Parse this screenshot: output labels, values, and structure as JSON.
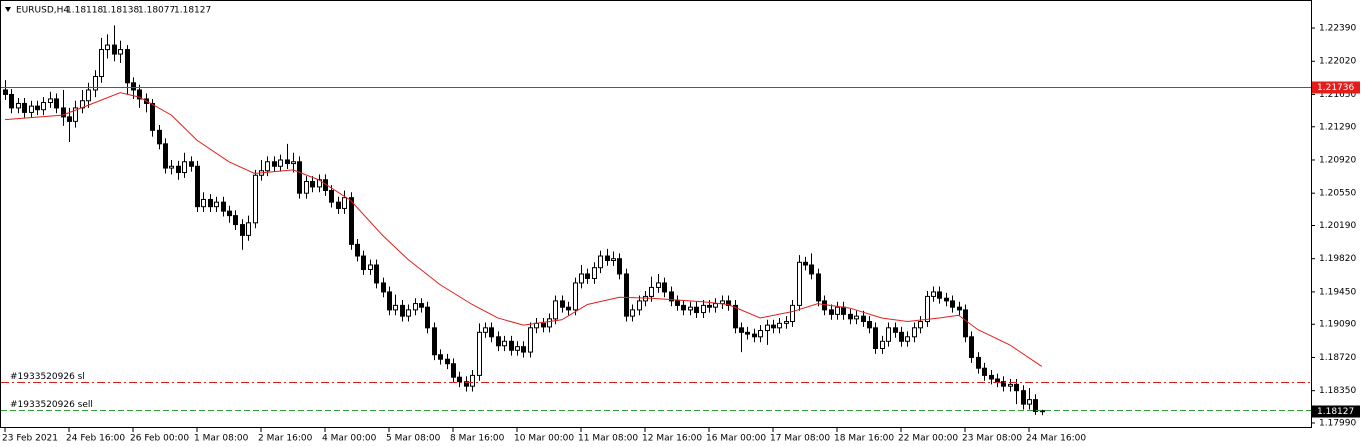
{
  "chart_data": {
    "type": "candlestick",
    "symbol": "EURUSD,H4",
    "categories": [
      "23 Feb 2021",
      null,
      null,
      null,
      null,
      null,
      null,
      null,
      null,
      null,
      "24 Feb 16:00",
      null,
      null,
      null,
      null,
      null,
      null,
      null,
      null,
      null,
      "26 Feb 00:00",
      null,
      null,
      null,
      null,
      null,
      null,
      null,
      null,
      null,
      "1 Mar 08:00",
      null,
      null,
      null,
      null,
      null,
      null,
      null,
      null,
      null,
      "2 Mar 16:00",
      null,
      null,
      null,
      null,
      null,
      null,
      null,
      null,
      null,
      "4 Mar 00:00",
      null,
      null,
      null,
      null,
      null,
      null,
      null,
      null,
      null,
      "5 Mar 08:00",
      null,
      null,
      null,
      null,
      null,
      null,
      null,
      null,
      null,
      "8 Mar 16:00",
      null,
      null,
      null,
      null,
      null,
      null,
      null,
      null,
      null,
      "10 Mar 00:00",
      null,
      null,
      null,
      null,
      null,
      null,
      null,
      null,
      null,
      "11 Mar 08:00",
      null,
      null,
      null,
      null,
      null,
      null,
      null,
      null,
      null,
      "12 Mar 16:00",
      null,
      null,
      null,
      null,
      null,
      null,
      null,
      null,
      null,
      "16 Mar 00:00",
      null,
      null,
      null,
      null,
      null,
      null,
      null,
      null,
      null,
      "17 Mar 08:00",
      null,
      null,
      null,
      null,
      null,
      null,
      null,
      null,
      null,
      "18 Mar 16:00",
      null,
      null,
      null,
      null,
      null,
      null,
      null,
      null,
      null,
      "22 Mar 00:00",
      null,
      null,
      null,
      null,
      null,
      null,
      null,
      null,
      null,
      "23 Mar 08:00",
      null,
      null,
      null,
      null,
      null,
      null,
      null,
      null,
      null,
      "24 Mar 16:00",
      null,
      null
    ],
    "ohlc": [
      [
        1.217,
        1.2181,
        1.2159,
        1.2165
      ],
      [
        1.2165,
        1.2171,
        1.2144,
        1.215
      ],
      [
        1.215,
        1.2161,
        1.2144,
        1.2155
      ],
      [
        1.2155,
        1.2161,
        1.2139,
        1.2145
      ],
      [
        1.2145,
        1.2158,
        1.2139,
        1.2152
      ],
      [
        1.2152,
        1.2158,
        1.2142,
        1.2148
      ],
      [
        1.2148,
        1.2162,
        1.2142,
        1.2156
      ],
      [
        1.2156,
        1.2168,
        1.215,
        1.216
      ],
      [
        1.216,
        1.2166,
        1.2144,
        1.215
      ],
      [
        1.215,
        1.217,
        1.213,
        1.214
      ],
      [
        1.214,
        1.215,
        1.2112,
        1.2135
      ],
      [
        1.2135,
        1.2158,
        1.2128,
        1.215
      ],
      [
        1.215,
        1.217,
        1.2144,
        1.2158
      ],
      [
        1.2158,
        1.2178,
        1.215,
        1.217
      ],
      [
        1.217,
        1.2192,
        1.2162,
        1.2185
      ],
      [
        1.2185,
        1.2228,
        1.2178,
        1.2215
      ],
      [
        1.2215,
        1.2232,
        1.2205,
        1.222
      ],
      [
        1.222,
        1.2242,
        1.2202,
        1.221
      ],
      [
        1.221,
        1.2225,
        1.22,
        1.2215
      ],
      [
        1.2215,
        1.222,
        1.2165,
        1.2178
      ],
      [
        1.2178,
        1.2184,
        1.216,
        1.217
      ],
      [
        1.217,
        1.2176,
        1.215,
        1.216
      ],
      [
        1.216,
        1.2166,
        1.2145,
        1.2155
      ],
      [
        1.2155,
        1.216,
        1.2118,
        1.2125
      ],
      [
        1.2125,
        1.2131,
        1.2104,
        1.211
      ],
      [
        1.211,
        1.2116,
        1.2077,
        1.2083
      ],
      [
        1.2083,
        1.2092,
        1.2076,
        1.2085
      ],
      [
        1.2085,
        1.2091,
        1.207,
        1.2078
      ],
      [
        1.2078,
        1.21,
        1.2072,
        1.209
      ],
      [
        1.209,
        1.2096,
        1.2079,
        1.2085
      ],
      [
        1.2085,
        1.2091,
        1.2034,
        1.204
      ],
      [
        1.204,
        1.2056,
        1.2034,
        1.2048
      ],
      [
        1.2048,
        1.2054,
        1.2034,
        1.204
      ],
      [
        1.204,
        1.2051,
        1.2034,
        1.2045
      ],
      [
        1.2045,
        1.2051,
        1.2029,
        1.2035
      ],
      [
        1.2035,
        1.2041,
        1.2022,
        1.203
      ],
      [
        1.203,
        1.2036,
        1.2014,
        1.202
      ],
      [
        1.202,
        1.2026,
        1.1992,
        1.2008
      ],
      [
        1.2008,
        1.203,
        1.2002,
        1.2022
      ],
      [
        1.2022,
        1.2081,
        1.2016,
        1.2075
      ],
      [
        1.2075,
        1.2092,
        1.2069,
        1.208
      ],
      [
        1.208,
        1.2096,
        1.2074,
        1.209
      ],
      [
        1.209,
        1.2096,
        1.2079,
        1.2085
      ],
      [
        1.2085,
        1.2098,
        1.2079,
        1.2092
      ],
      [
        1.2092,
        1.211,
        1.2082,
        1.2088
      ],
      [
        1.2088,
        1.21,
        1.2078,
        1.209
      ],
      [
        1.209,
        1.2096,
        1.2049,
        1.2055
      ],
      [
        1.2055,
        1.2074,
        1.2049,
        1.2068
      ],
      [
        1.2068,
        1.2074,
        1.2056,
        1.2062
      ],
      [
        1.2062,
        1.2076,
        1.2056,
        1.207
      ],
      [
        1.207,
        1.2076,
        1.2052,
        1.2058
      ],
      [
        1.2058,
        1.2064,
        1.2039,
        1.2045
      ],
      [
        1.2045,
        1.2051,
        1.2032,
        1.2038
      ],
      [
        1.2038,
        1.2058,
        1.2032,
        1.205
      ],
      [
        1.205,
        1.2056,
        1.1992,
        1.1998
      ],
      [
        1.1998,
        1.2004,
        1.1979,
        1.1985
      ],
      [
        1.1985,
        1.1991,
        1.1964,
        1.197
      ],
      [
        1.197,
        1.1981,
        1.1964,
        1.1975
      ],
      [
        1.1975,
        1.1981,
        1.1949,
        1.1955
      ],
      [
        1.1955,
        1.1961,
        1.1939,
        1.1945
      ],
      [
        1.1945,
        1.1951,
        1.1919,
        1.1925
      ],
      [
        1.1925,
        1.1942,
        1.1919,
        1.193
      ],
      [
        1.193,
        1.1936,
        1.1912,
        1.1918
      ],
      [
        1.1918,
        1.1931,
        1.1912,
        1.1925
      ],
      [
        1.1925,
        1.1938,
        1.1919,
        1.1932
      ],
      [
        1.1932,
        1.1938,
        1.1922,
        1.1928
      ],
      [
        1.1928,
        1.1934,
        1.1899,
        1.1905
      ],
      [
        1.1905,
        1.1911,
        1.1869,
        1.1875
      ],
      [
        1.1875,
        1.1881,
        1.1864,
        1.187
      ],
      [
        1.187,
        1.1876,
        1.1859,
        1.1865
      ],
      [
        1.1865,
        1.1871,
        1.1844,
        1.185
      ],
      [
        1.185,
        1.1856,
        1.1839,
        1.1845
      ],
      [
        1.1845,
        1.1851,
        1.1834,
        1.184
      ],
      [
        1.184,
        1.1858,
        1.1834,
        1.1852
      ],
      [
        1.1852,
        1.191,
        1.1846,
        1.19
      ],
      [
        1.19,
        1.1911,
        1.1894,
        1.1905
      ],
      [
        1.1905,
        1.1911,
        1.1889,
        1.1895
      ],
      [
        1.1895,
        1.1901,
        1.1879,
        1.1885
      ],
      [
        1.1885,
        1.1896,
        1.1879,
        1.189
      ],
      [
        1.189,
        1.1896,
        1.1874,
        1.188
      ],
      [
        1.188,
        1.189,
        1.1874,
        1.1884
      ],
      [
        1.1884,
        1.189,
        1.1872,
        1.1878
      ],
      [
        1.1878,
        1.1911,
        1.1872,
        1.1905
      ],
      [
        1.1905,
        1.1916,
        1.1899,
        1.191
      ],
      [
        1.191,
        1.1916,
        1.19,
        1.1906
      ],
      [
        1.1906,
        1.1921,
        1.19,
        1.1915
      ],
      [
        1.1915,
        1.1941,
        1.1909,
        1.1935
      ],
      [
        1.1935,
        1.1941,
        1.1922,
        1.1928
      ],
      [
        1.1928,
        1.1934,
        1.1919,
        1.1925
      ],
      [
        1.1925,
        1.1961,
        1.1919,
        1.1955
      ],
      [
        1.1955,
        1.1975,
        1.1949,
        1.1965
      ],
      [
        1.1965,
        1.1971,
        1.1954,
        1.196
      ],
      [
        1.196,
        1.1978,
        1.1954,
        1.1972
      ],
      [
        1.1972,
        1.1991,
        1.1966,
        1.1985
      ],
      [
        1.1985,
        1.1993,
        1.1974,
        1.198
      ],
      [
        1.198,
        1.199,
        1.1974,
        1.1982
      ],
      [
        1.1982,
        1.1988,
        1.1959,
        1.1965
      ],
      [
        1.1965,
        1.1971,
        1.1912,
        1.1918
      ],
      [
        1.1918,
        1.1931,
        1.1912,
        1.1925
      ],
      [
        1.1925,
        1.1941,
        1.1919,
        1.1935
      ],
      [
        1.1935,
        1.1946,
        1.1929,
        1.194
      ],
      [
        1.194,
        1.1962,
        1.1934,
        1.195
      ],
      [
        1.195,
        1.1965,
        1.1944,
        1.1955
      ],
      [
        1.1955,
        1.1961,
        1.1939,
        1.1945
      ],
      [
        1.1945,
        1.1951,
        1.1929,
        1.1935
      ],
      [
        1.1935,
        1.1941,
        1.1924,
        1.193
      ],
      [
        1.193,
        1.1936,
        1.1919,
        1.1925
      ],
      [
        1.1925,
        1.1934,
        1.1919,
        1.1928
      ],
      [
        1.1928,
        1.1934,
        1.1916,
        1.1922
      ],
      [
        1.1922,
        1.1936,
        1.1916,
        1.193
      ],
      [
        1.193,
        1.1936,
        1.1922,
        1.1928
      ],
      [
        1.1928,
        1.1938,
        1.1922,
        1.1932
      ],
      [
        1.1932,
        1.1941,
        1.1926,
        1.1935
      ],
      [
        1.1935,
        1.1941,
        1.1924,
        1.193
      ],
      [
        1.193,
        1.1936,
        1.1899,
        1.1905
      ],
      [
        1.1905,
        1.1911,
        1.1878,
        1.19
      ],
      [
        1.19,
        1.1906,
        1.1892,
        1.1898
      ],
      [
        1.1898,
        1.1904,
        1.1889,
        1.1895
      ],
      [
        1.1895,
        1.1908,
        1.1889,
        1.1902
      ],
      [
        1.1902,
        1.1914,
        1.1886,
        1.1908
      ],
      [
        1.1908,
        1.1914,
        1.1899,
        1.1905
      ],
      [
        1.1905,
        1.1916,
        1.1899,
        1.191
      ],
      [
        1.191,
        1.1918,
        1.1904,
        1.1912
      ],
      [
        1.1912,
        1.1936,
        1.1906,
        1.193
      ],
      [
        1.193,
        1.1986,
        1.1924,
        1.1978
      ],
      [
        1.1978,
        1.1984,
        1.1969,
        1.1975
      ],
      [
        1.1975,
        1.1988,
        1.1959,
        1.1965
      ],
      [
        1.1965,
        1.1971,
        1.1929,
        1.1935
      ],
      [
        1.1935,
        1.1941,
        1.1919,
        1.1925
      ],
      [
        1.1925,
        1.1931,
        1.1914,
        1.192
      ],
      [
        1.192,
        1.1934,
        1.1914,
        1.1928
      ],
      [
        1.1928,
        1.1934,
        1.1914,
        1.192
      ],
      [
        1.192,
        1.1926,
        1.1909,
        1.1915
      ],
      [
        1.1915,
        1.1924,
        1.1909,
        1.1918
      ],
      [
        1.1918,
        1.1924,
        1.1906,
        1.1912
      ],
      [
        1.1912,
        1.1918,
        1.1899,
        1.1905
      ],
      [
        1.1905,
        1.1911,
        1.1876,
        1.1882
      ],
      [
        1.1882,
        1.1896,
        1.1876,
        1.189
      ],
      [
        1.189,
        1.1911,
        1.1884,
        1.1905
      ],
      [
        1.1905,
        1.1911,
        1.1894,
        1.19
      ],
      [
        1.19,
        1.1906,
        1.1884,
        1.189
      ],
      [
        1.189,
        1.1901,
        1.1884,
        1.1895
      ],
      [
        1.1895,
        1.1911,
        1.1889,
        1.1905
      ],
      [
        1.1905,
        1.1918,
        1.1899,
        1.1912
      ],
      [
        1.1912,
        1.1946,
        1.1906,
        1.194
      ],
      [
        1.194,
        1.1951,
        1.1934,
        1.1945
      ],
      [
        1.1945,
        1.1951,
        1.1932,
        1.1938
      ],
      [
        1.1938,
        1.1944,
        1.1929,
        1.1935
      ],
      [
        1.1935,
        1.1941,
        1.1922,
        1.1928
      ],
      [
        1.1928,
        1.1934,
        1.1919,
        1.1925
      ],
      [
        1.1925,
        1.1931,
        1.1889,
        1.1895
      ],
      [
        1.1895,
        1.1901,
        1.1866,
        1.1872
      ],
      [
        1.1872,
        1.1878,
        1.1854,
        1.186
      ],
      [
        1.186,
        1.1866,
        1.1846,
        1.1852
      ],
      [
        1.1852,
        1.1858,
        1.1842,
        1.1848
      ],
      [
        1.1848,
        1.1854,
        1.1839,
        1.1845
      ],
      [
        1.1845,
        1.1851,
        1.1834,
        1.184
      ],
      [
        1.184,
        1.1848,
        1.1834,
        1.1842
      ],
      [
        1.1842,
        1.1848,
        1.182,
        1.1835
      ],
      [
        1.1835,
        1.1841,
        1.1814,
        1.182
      ],
      [
        1.182,
        1.1838,
        1.1814,
        1.1825
      ],
      [
        1.1825,
        1.1831,
        1.1808,
        1.18118
      ],
      [
        1.18118,
        1.18138,
        1.18077,
        1.18127
      ]
    ],
    "up_color": "#ffffff",
    "down_color": "#000000",
    "ylim": [
      1.17934,
      1.2268
    ],
    "yticks": [
      {
        "value": 1.2239,
        "label": "1.22390"
      },
      {
        "value": 1.2202,
        "label": "1.22020"
      },
      {
        "value": 1.2165,
        "label": "1.21650"
      },
      {
        "value": 1.2129,
        "label": "1.21290"
      },
      {
        "value": 1.2092,
        "label": "1.20920"
      },
      {
        "value": 1.2055,
        "label": "1.20550"
      },
      {
        "value": 1.2019,
        "label": "1.20190"
      },
      {
        "value": 1.1982,
        "label": "1.19820"
      },
      {
        "value": 1.1945,
        "label": "1.19450"
      },
      {
        "value": 1.1909,
        "label": "1.19090"
      },
      {
        "value": 1.1872,
        "label": "1.18720"
      },
      {
        "value": 1.1835,
        "label": "1.18350"
      },
      {
        "value": 1.1799,
        "label": "1.17990"
      }
    ],
    "grid": false,
    "ma": {
      "color": "#e0201a",
      "x": [
        0,
        9,
        13,
        18,
        21,
        26,
        30,
        35,
        39,
        45,
        49,
        54,
        59,
        63,
        68,
        73,
        77,
        81,
        87,
        91,
        96,
        101,
        109,
        113,
        118,
        123,
        127,
        132,
        137,
        141,
        146,
        149,
        152,
        157,
        162
      ],
      "values": [
        1.2137,
        1.2142,
        1.2153,
        1.2167,
        1.2162,
        1.2142,
        1.2114,
        1.209,
        1.2077,
        1.2081,
        1.207,
        1.2047,
        1.2008,
        1.1981,
        1.1953,
        1.1931,
        1.1916,
        1.1908,
        1.1914,
        1.1931,
        1.1939,
        1.1938,
        1.1934,
        1.1931,
        1.1916,
        1.1923,
        1.1932,
        1.1927,
        1.1916,
        1.1912,
        1.1916,
        1.1919,
        1.1903,
        1.1886,
        1.1862
      ]
    },
    "levels": [
      {
        "value": 1.21736,
        "color": "#e31c1c",
        "dash": "solid"
      },
      {
        "value": 1.18447,
        "label": "#1933520926 sl",
        "color": "#e31c1c",
        "dash": "dashdot"
      },
      {
        "value": 1.18135,
        "label": "#1933520926 sell",
        "color": "#2e9e3a",
        "dash": "dash"
      }
    ]
  }
}
